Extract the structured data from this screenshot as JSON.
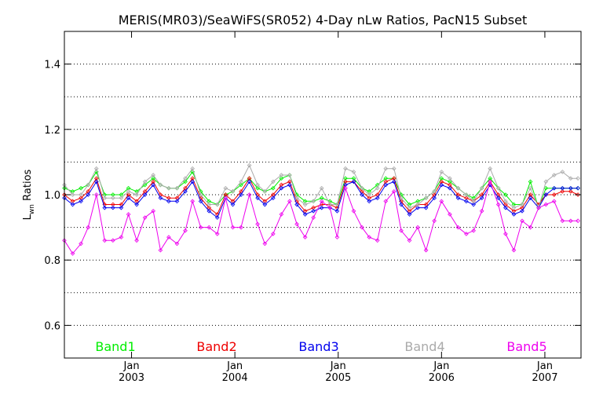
{
  "chart_data": {
    "type": "line",
    "title": "MERIS(MR03)/SeaWiFS(SR052) 4-Day nLw Ratios, PacN15 Subset",
    "ylabel_main": "L",
    "ylabel_sub": "wn",
    "ylabel_rest": " Ratios",
    "xlim": [
      2002.35,
      2007.35
    ],
    "ylim": [
      0.5,
      1.5
    ],
    "yticks": [
      {
        "v": 0.6,
        "label": "0.6"
      },
      {
        "v": 0.8,
        "label": "0.8"
      },
      {
        "v": 1.0,
        "label": "1.0"
      },
      {
        "v": 1.2,
        "label": "1.2"
      },
      {
        "v": 1.4,
        "label": "1.4"
      }
    ],
    "ygrid": [
      0.6,
      0.7,
      0.8,
      0.9,
      1.0,
      1.1,
      1.2,
      1.3,
      1.4
    ],
    "xticks": [
      {
        "v": 2003.0,
        "top": "Jan",
        "bottom": "2003"
      },
      {
        "v": 2004.0,
        "top": "Jan",
        "bottom": "2004"
      },
      {
        "v": 2005.0,
        "top": "Jan",
        "bottom": "2005"
      },
      {
        "v": 2006.0,
        "top": "Jan",
        "bottom": "2006"
      },
      {
        "v": 2007.0,
        "top": "Jan",
        "bottom": "2007"
      }
    ],
    "grid": true,
    "x": [
      2002.35,
      2002.43,
      2002.51,
      2002.58,
      2002.66,
      2002.74,
      2002.82,
      2002.9,
      2002.97,
      2003.05,
      2003.13,
      2003.21,
      2003.28,
      2003.36,
      2003.44,
      2003.52,
      2003.59,
      2003.67,
      2003.75,
      2003.83,
      2003.91,
      2003.98,
      2004.06,
      2004.14,
      2004.22,
      2004.29,
      2004.37,
      2004.45,
      2004.53,
      2004.6,
      2004.68,
      2004.76,
      2004.84,
      2004.92,
      2004.99,
      2005.07,
      2005.15,
      2005.23,
      2005.3,
      2005.38,
      2005.46,
      2005.54,
      2005.61,
      2005.69,
      2005.77,
      2005.85,
      2005.93,
      2006.0,
      2006.08,
      2006.16,
      2006.24,
      2006.31,
      2006.39,
      2006.47,
      2006.55,
      2006.62,
      2006.7,
      2006.78,
      2006.86,
      2006.94,
      2007.01,
      2007.09,
      2007.17,
      2007.25,
      2007.32
    ],
    "series": [
      {
        "name": "Band1",
        "color": "#00ee00",
        "values": [
          1.02,
          1.01,
          1.02,
          1.03,
          1.07,
          1.0,
          1.0,
          1.0,
          1.02,
          1.01,
          1.03,
          1.05,
          1.03,
          1.02,
          1.02,
          1.04,
          1.07,
          1.01,
          0.98,
          0.97,
          1.0,
          1.01,
          1.03,
          1.05,
          1.02,
          1.01,
          1.02,
          1.05,
          1.06,
          1.0,
          0.98,
          0.98,
          0.99,
          0.98,
          0.97,
          1.05,
          1.05,
          1.02,
          1.01,
          1.03,
          1.05,
          1.05,
          1.0,
          0.97,
          0.98,
          0.99,
          1.01,
          1.05,
          1.04,
          1.02,
          1.0,
          0.99,
          1.02,
          1.05,
          1.02,
          1.0,
          0.97,
          0.97,
          1.04,
          0.96,
          1.02,
          1.02,
          1.02,
          1.02,
          1.02
        ]
      },
      {
        "name": "Band2",
        "color": "#ee0000",
        "values": [
          1.0,
          0.98,
          0.99,
          1.01,
          1.05,
          0.97,
          0.97,
          0.97,
          1.0,
          0.98,
          1.01,
          1.04,
          1.0,
          0.99,
          0.99,
          1.02,
          1.05,
          0.99,
          0.96,
          0.94,
          1.0,
          0.98,
          1.01,
          1.05,
          1.0,
          0.98,
          1.0,
          1.03,
          1.04,
          0.98,
          0.95,
          0.96,
          0.97,
          0.97,
          0.96,
          1.04,
          1.04,
          1.01,
          0.99,
          1.0,
          1.04,
          1.05,
          0.98,
          0.95,
          0.97,
          0.97,
          1.0,
          1.04,
          1.03,
          1.0,
          0.99,
          0.98,
          1.0,
          1.04,
          1.0,
          0.97,
          0.95,
          0.96,
          1.0,
          0.97,
          1.0,
          1.0,
          1.01,
          1.01,
          1.0
        ]
      },
      {
        "name": "Band3",
        "color": "#0000ee",
        "values": [
          0.99,
          0.97,
          0.98,
          1.0,
          1.04,
          0.96,
          0.96,
          0.96,
          0.99,
          0.97,
          1.0,
          1.03,
          0.99,
          0.98,
          0.98,
          1.01,
          1.04,
          0.98,
          0.95,
          0.93,
          0.99,
          0.97,
          1.0,
          1.04,
          0.99,
          0.97,
          0.99,
          1.02,
          1.03,
          0.97,
          0.94,
          0.95,
          0.96,
          0.96,
          0.95,
          1.03,
          1.04,
          1.0,
          0.98,
          0.99,
          1.03,
          1.04,
          0.97,
          0.94,
          0.96,
          0.96,
          0.99,
          1.03,
          1.02,
          0.99,
          0.98,
          0.97,
          0.99,
          1.03,
          0.99,
          0.96,
          0.94,
          0.95,
          0.99,
          0.96,
          1.0,
          1.02,
          1.02,
          1.02,
          1.02
        ]
      },
      {
        "name": "Band4",
        "color": "#aaaaaa",
        "values": [
          1.03,
          1.0,
          1.0,
          1.03,
          1.08,
          0.99,
          0.99,
          0.99,
          1.01,
          1.0,
          1.04,
          1.06,
          1.03,
          1.02,
          1.02,
          1.05,
          1.08,
          1.0,
          0.97,
          0.97,
          1.02,
          1.01,
          1.04,
          1.09,
          1.03,
          1.01,
          1.04,
          1.06,
          1.06,
          0.99,
          0.97,
          0.98,
          1.02,
          0.97,
          0.97,
          1.08,
          1.07,
          1.02,
          1.0,
          1.02,
          1.08,
          1.08,
          0.99,
          0.96,
          0.97,
          0.99,
          1.01,
          1.07,
          1.05,
          1.02,
          1.0,
          0.98,
          1.02,
          1.08,
          1.02,
          0.98,
          0.96,
          0.97,
          1.02,
          0.96,
          1.04,
          1.06,
          1.07,
          1.05,
          1.05
        ]
      },
      {
        "name": "Band5",
        "color": "#ee00ee",
        "values": [
          0.86,
          0.82,
          0.85,
          0.9,
          1.0,
          0.86,
          0.86,
          0.87,
          0.94,
          0.86,
          0.93,
          0.95,
          0.83,
          0.87,
          0.85,
          0.89,
          0.98,
          0.9,
          0.9,
          0.88,
          0.99,
          0.9,
          0.9,
          1.0,
          0.91,
          0.85,
          0.88,
          0.94,
          0.98,
          0.91,
          0.87,
          0.93,
          0.98,
          0.96,
          0.87,
          1.02,
          0.95,
          0.9,
          0.87,
          0.86,
          0.98,
          1.01,
          0.89,
          0.86,
          0.9,
          0.83,
          0.92,
          0.98,
          0.94,
          0.9,
          0.88,
          0.89,
          0.95,
          1.04,
          0.97,
          0.88,
          0.83,
          0.92,
          0.9,
          0.96,
          0.97,
          0.98,
          0.92,
          0.92,
          0.92
        ]
      }
    ]
  }
}
